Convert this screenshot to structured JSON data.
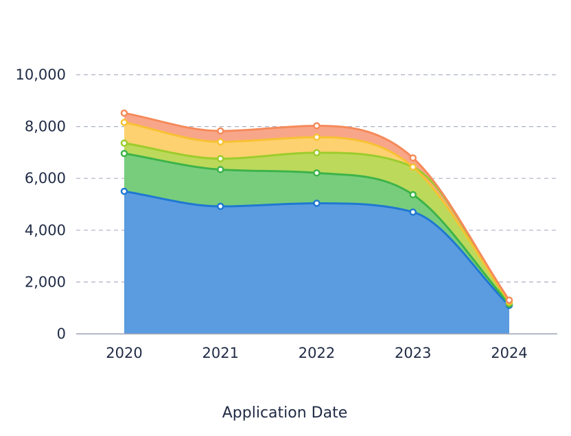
{
  "chart_data": {
    "type": "area",
    "stacked": true,
    "xlabel": "Application Date",
    "ylabel": "",
    "x": [
      "2020",
      "2021",
      "2022",
      "2023",
      "2024"
    ],
    "ylim": [
      0,
      10000
    ],
    "yticks": [
      0,
      2000,
      4000,
      6000,
      8000,
      10000
    ],
    "ytick_labels": [
      "0",
      "2,000",
      "4,000",
      "6,000",
      "8,000",
      "10,000"
    ],
    "grid": true,
    "series": [
      {
        "values": [
          5500,
          4920,
          5040,
          4700,
          1100
        ],
        "color": "#1f78d1",
        "fill": "#5b9be0"
      },
      {
        "values": [
          1460,
          1420,
          1170,
          670,
          50
        ],
        "color": "#3cb34a",
        "fill": "#78cd7d"
      },
      {
        "values": [
          400,
          420,
          780,
          1070,
          50
        ],
        "color": "#9ccc2c",
        "fill": "#bcd95b"
      },
      {
        "values": [
          800,
          650,
          600,
          0,
          50
        ],
        "color": "#f7c232",
        "fill": "#fdd170"
      },
      {
        "values": [
          360,
          420,
          440,
          350,
          50
        ],
        "color": "#f58a5a",
        "fill": "#f8a68a"
      }
    ]
  }
}
